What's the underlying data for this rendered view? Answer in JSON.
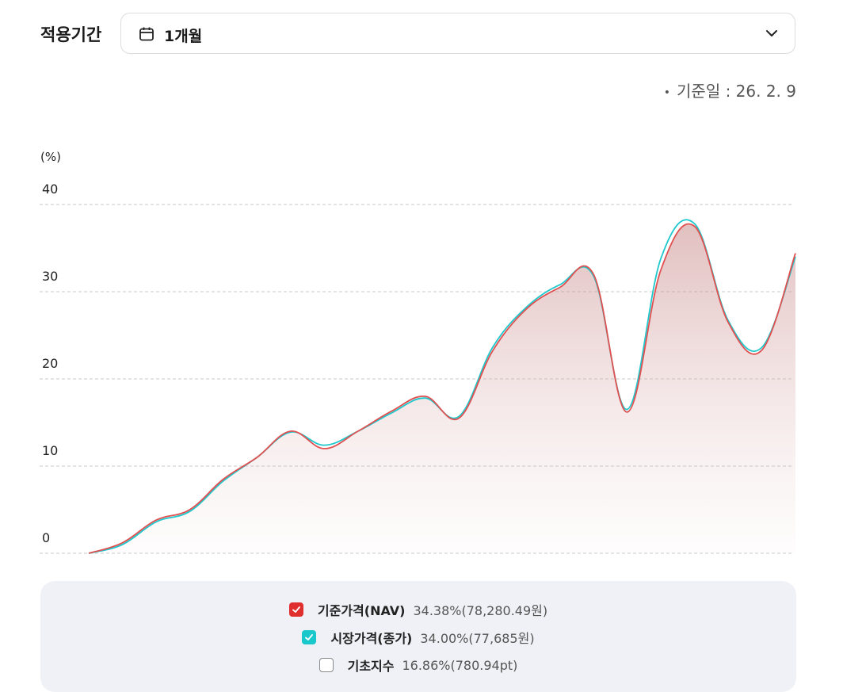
{
  "period": {
    "label": "적용기간",
    "value": "1개월",
    "icon": "calendar-icon",
    "dropdown_icon": "chevron-down-icon"
  },
  "reference_date": "기준일 : 26. 2. 9",
  "chart_data": {
    "type": "area",
    "ylabel": "(%)",
    "ylim": [
      0,
      40
    ],
    "yticks": [
      "0",
      "10",
      "20",
      "30",
      "40"
    ],
    "grid": true,
    "x": [
      1,
      2,
      3,
      4,
      5,
      6,
      7,
      8,
      9,
      10,
      11,
      12,
      13,
      14,
      15,
      16,
      17,
      18,
      19,
      20,
      21,
      22
    ],
    "series": [
      {
        "name": "기준가격(NAV)",
        "color": "#e05050",
        "filled": true,
        "values": [
          0,
          1.2,
          3.8,
          5.0,
          8.5,
          11.0,
          14.0,
          12.0,
          14.0,
          16.3,
          18.0,
          15.5,
          23.2,
          28.0,
          30.5,
          32.0,
          16.2,
          32.5,
          37.5,
          26.5,
          23.3,
          34.4
        ]
      },
      {
        "name": "시장가격(종가)",
        "color": "#1fc8cc",
        "filled": false,
        "values": [
          0,
          1.0,
          3.6,
          4.8,
          8.3,
          11.0,
          13.9,
          12.4,
          14.0,
          16.1,
          17.8,
          15.7,
          23.6,
          28.2,
          30.8,
          31.8,
          16.5,
          33.8,
          37.8,
          26.7,
          23.6,
          34.0
        ]
      }
    ],
    "legend": [
      {
        "name": "기준가격(NAV)",
        "value": "34.38%(78,280.49원)",
        "checked": true,
        "color": "#e02e2e"
      },
      {
        "name": "시장가격(종가)",
        "value": "34.00%(77,685원)",
        "checked": true,
        "color": "#1ac8cc"
      },
      {
        "name": "기초지수",
        "value": "16.86%(780.94pt)",
        "checked": false,
        "color": "#888888"
      }
    ]
  }
}
